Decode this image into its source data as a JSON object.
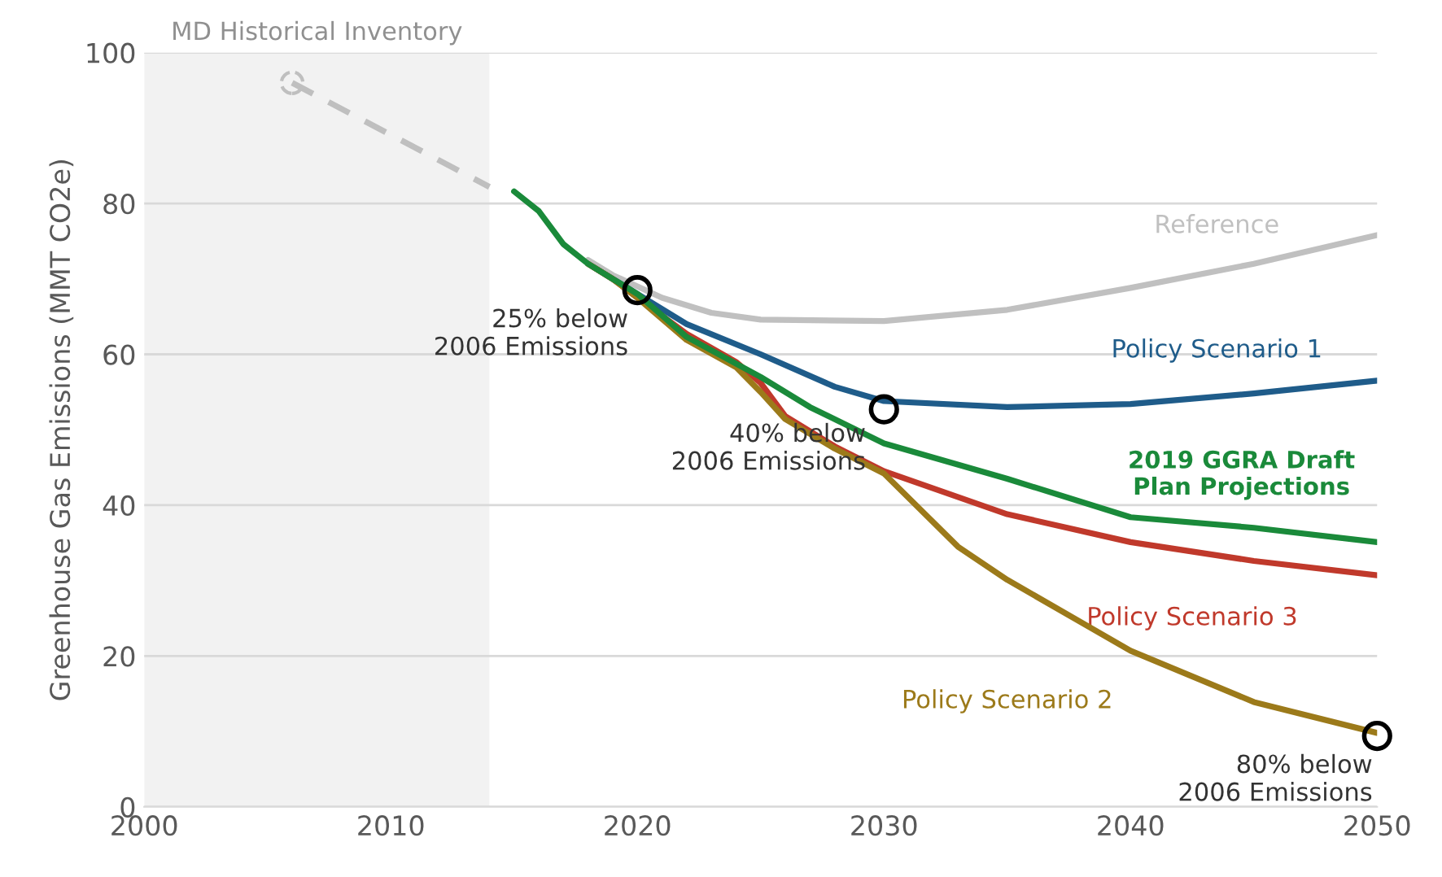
{
  "chart_data": {
    "type": "line",
    "ylabel": "Greenhouse Gas Emissions (MMT CO2e)",
    "xlim": [
      2000,
      2050
    ],
    "xticks": [
      2000,
      2010,
      2020,
      2030,
      2040,
      2050
    ],
    "ylim": [
      0,
      100
    ],
    "yticks": [
      0,
      20,
      40,
      60,
      80,
      100
    ],
    "grid": "y",
    "legend": false,
    "line_style": "solid",
    "bands": [
      {
        "axis": "x",
        "from": 2000,
        "to": 2014,
        "label": "MD Historical Inventory",
        "color": "#f2f2f2"
      }
    ],
    "series": [
      {
        "color": "#bfbfbf",
        "line_style": "dashed",
        "x": [
          2006,
          2014
        ],
        "values": [
          96,
          82.2
        ]
      },
      {
        "type": "scatter",
        "color": "#bfbfbf",
        "marker": "circle",
        "x": [
          2006
        ],
        "values": [
          96
        ]
      },
      {
        "name": "Reference",
        "color": "#c0c0c0",
        "x": [
          2018,
          2019,
          2020,
          2021,
          2023,
          2025,
          2030,
          2035,
          2040,
          2045,
          2050
        ],
        "values": [
          72.5,
          70.5,
          69,
          67.5,
          65.5,
          64.6,
          64.4,
          65.9,
          68.8,
          72,
          75.8
        ]
      },
      {
        "name": "Policy Scenario 1",
        "color": "#1f5c8a",
        "x": [
          2018,
          2019,
          2020,
          2022,
          2025,
          2028,
          2030,
          2035,
          2040,
          2045,
          2050
        ],
        "values": [
          72,
          70,
          68,
          64,
          60,
          55.7,
          53.8,
          53,
          53.4,
          54.8,
          56.5
        ]
      },
      {
        "name": "2019 GGRA Draft\nPlan Projections",
        "color": "#1a8a3a",
        "x": [
          2015,
          2016,
          2017,
          2018,
          2019,
          2020,
          2022,
          2025,
          2027,
          2030,
          2035,
          2040,
          2045,
          2050
        ],
        "values": [
          81.6,
          79,
          74.6,
          72,
          70,
          68,
          62.3,
          57,
          53,
          48.2,
          43.5,
          38.4,
          37,
          35.1
        ]
      },
      {
        "name": "Policy Scenario 3",
        "color": "#c0392b",
        "x": [
          2018,
          2019,
          2020,
          2022,
          2024,
          2025,
          2026,
          2028,
          2030,
          2035,
          2040,
          2045,
          2050
        ],
        "values": [
          72,
          70,
          67.5,
          62.7,
          59,
          56.2,
          51.8,
          47.8,
          44.5,
          38.8,
          35.1,
          32.6,
          30.7
        ]
      },
      {
        "name": "Policy Scenario 2",
        "color": "#9c7a1a",
        "x": [
          2018,
          2019,
          2020,
          2022,
          2024,
          2025,
          2026,
          2028,
          2030,
          2033,
          2035,
          2040,
          2045,
          2050
        ],
        "values": [
          72,
          70,
          67.5,
          61.9,
          58.3,
          55,
          51.4,
          47.5,
          44.2,
          34.5,
          30.1,
          20.7,
          13.9,
          9.8
        ]
      }
    ],
    "annotations": [
      {
        "text": "25% below\n2006 Emissions",
        "x": 2020,
        "y": 68.5
      },
      {
        "text": "40% below\n2006 Emissions",
        "x": 2030,
        "y": 52.7
      },
      {
        "text": "80% below\n2006 Emissions",
        "x": 2050,
        "y": 9.4
      }
    ]
  }
}
